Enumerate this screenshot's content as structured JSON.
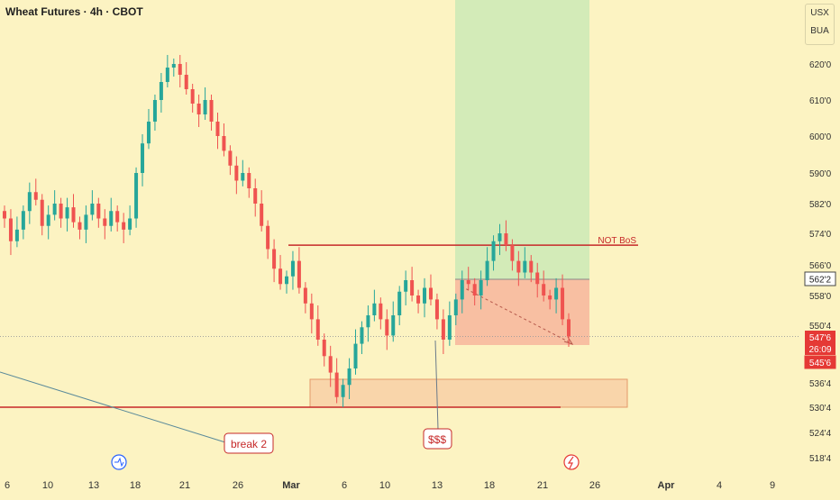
{
  "header": {
    "title": "Wheat Futures · 4h · CBOT"
  },
  "currency": [
    "USX",
    "BUA"
  ],
  "colors": {
    "bg": "#FCF3C2",
    "up": "#26A69A",
    "down": "#EF5350",
    "level": "#C62828",
    "greenZone": "#C5E8B4",
    "redZone": "#F7B59C",
    "demand": "#F9D0A6"
  },
  "annotations": {
    "not_bos": "NOT BoS",
    "break2": "break 2",
    "liquidity": "$$$"
  },
  "price_labels": {
    "last": "562'2",
    "current": "547'6",
    "countdown": "26:09",
    "low_tag": "545'6"
  },
  "chart_data": {
    "type": "candlestick",
    "title": "Wheat Futures · 4h · CBOT",
    "y_ticks": [
      "620'0",
      "610'0",
      "600'0",
      "590'0",
      "582'0",
      "574'0",
      "566'0",
      "558'0",
      "550'4",
      "536'4",
      "530'4",
      "524'4",
      "518'4"
    ],
    "y_tick_values": [
      620,
      610,
      600,
      590,
      582,
      574,
      566,
      558,
      550.5,
      536.5,
      530.5,
      524.5,
      518.5
    ],
    "x_ticks": [
      "6",
      "10",
      "13",
      "18",
      "21",
      "26",
      "Mar",
      "6",
      "10",
      "13",
      "18",
      "21",
      "26",
      "Apr",
      "4",
      "9"
    ],
    "levels": {
      "not_bos": 571,
      "lower": 530.5,
      "current": 547.75
    },
    "series_close": [
      578,
      572,
      575,
      580,
      585,
      583,
      576,
      579,
      582,
      578,
      581,
      577,
      575,
      579,
      582,
      578,
      576,
      580,
      577,
      575,
      578,
      590,
      598,
      604,
      610,
      615,
      619,
      620,
      617,
      613,
      609,
      606,
      610,
      604,
      600,
      596,
      592,
      588,
      590,
      586,
      582,
      576,
      570,
      565,
      561,
      563,
      567,
      560,
      556,
      552,
      547,
      543,
      539,
      533,
      536,
      540,
      546,
      550,
      553,
      556,
      552,
      548,
      553,
      559,
      562,
      558,
      556,
      560,
      557,
      552,
      547,
      553,
      557,
      562,
      561,
      558,
      562,
      567,
      572,
      574,
      571,
      567,
      564,
      567,
      564,
      561,
      558,
      557,
      560,
      552,
      547.75
    ]
  }
}
